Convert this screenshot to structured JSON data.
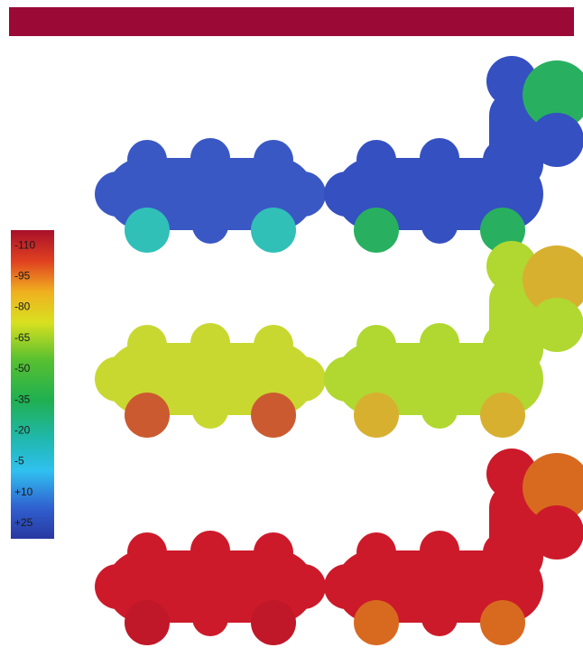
{
  "colorbar": {
    "labels": [
      "-110",
      "-95",
      "-80",
      "-65",
      "-50",
      "-35",
      "-20",
      "-5",
      "+10",
      "+25"
    ]
  }
}
